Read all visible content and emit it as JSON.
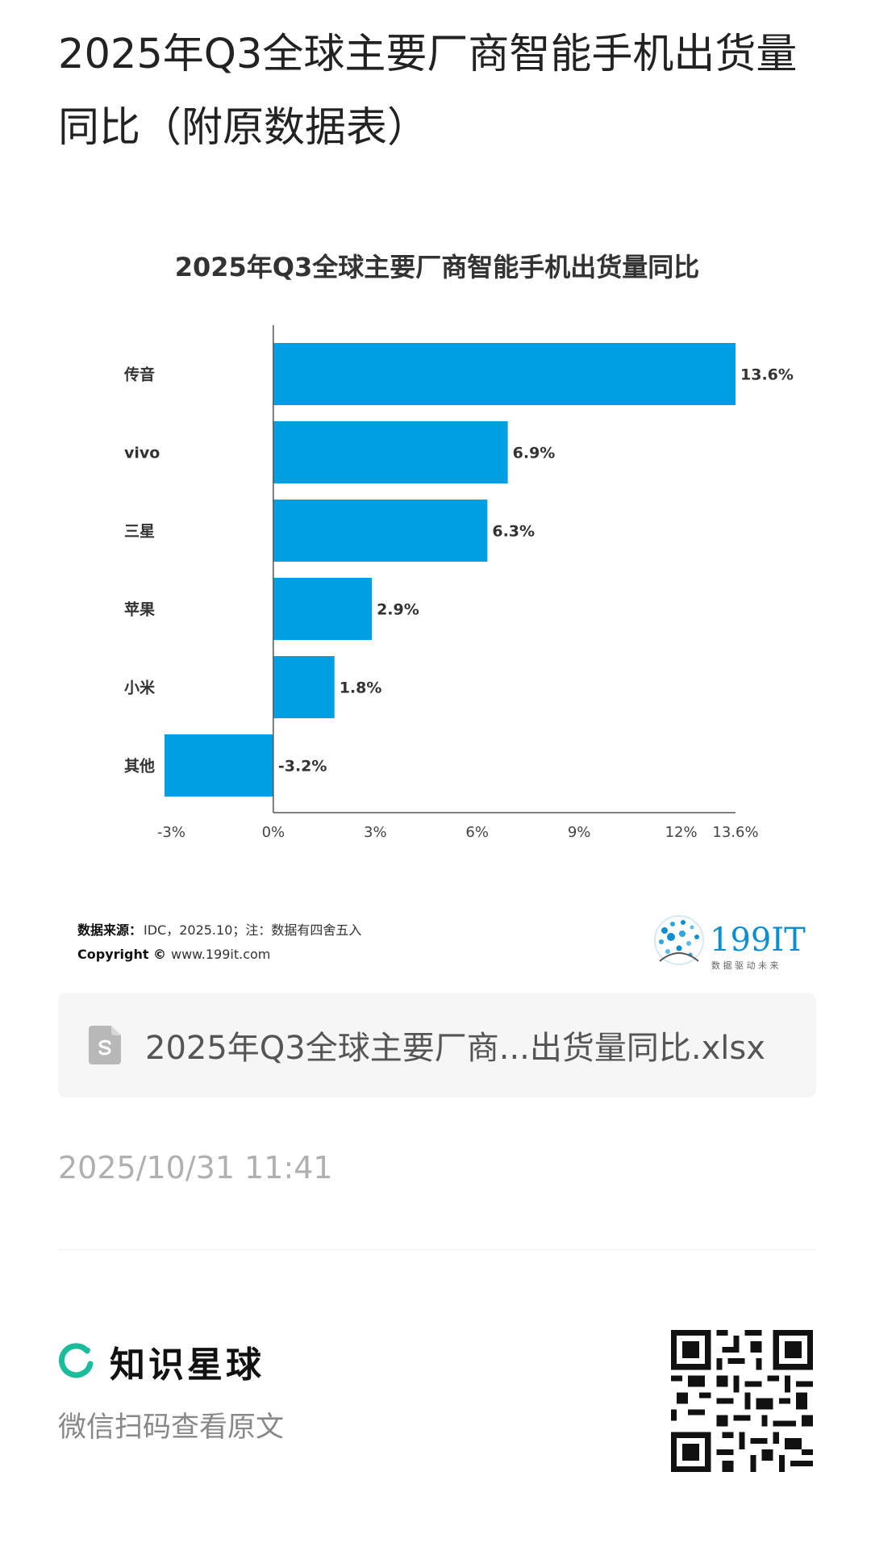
{
  "post": {
    "title": "2025年Q3全球主要厂商智能手机出货量同比（附原数据表）"
  },
  "chart_data": {
    "type": "bar",
    "orientation": "horizontal",
    "title": "2025年Q3全球主要厂商智能手机出货量同比",
    "categories": [
      "传音",
      "vivo",
      "三星",
      "苹果",
      "小米",
      "其他"
    ],
    "values": [
      13.6,
      6.9,
      6.3,
      2.9,
      1.8,
      -3.2
    ],
    "value_labels": [
      "13.6%",
      "6.9%",
      "6.3%",
      "2.9%",
      "1.8%",
      "-3.2%"
    ],
    "xlim": [
      -3.2,
      13.6
    ],
    "x_ticks": [
      -3,
      0,
      3,
      6,
      9,
      12,
      13.6
    ],
    "x_tick_labels": [
      "-3%",
      "0%",
      "3%",
      "6%",
      "9%",
      "12%",
      "13.6%"
    ],
    "bar_color": "#009fe3",
    "grid": false,
    "legend": "none",
    "source_label": "数据来源：",
    "source_text": "IDC，2025.10；注：数据有四舍五入",
    "copyright_label": "Copyright ©",
    "copyright_text": "www.199it.com",
    "logo_text": "199IT",
    "logo_tagline": "数 据 驱 动 未 来"
  },
  "attachment": {
    "icon": "spreadsheet-file-icon",
    "filename": "2025年Q3全球主要厂商...出货量同比.xlsx"
  },
  "timestamp": "2025/10/31 11:41",
  "footer": {
    "brand_icon": "planet-ring-icon",
    "brand_name": "知识星球",
    "subtitle": "微信扫码查看原文",
    "qr_icon": "qr-code-icon"
  },
  "colors": {
    "accent": "#1abc9c",
    "bar": "#009fe3",
    "logo_blue": "#0b8fd1"
  }
}
